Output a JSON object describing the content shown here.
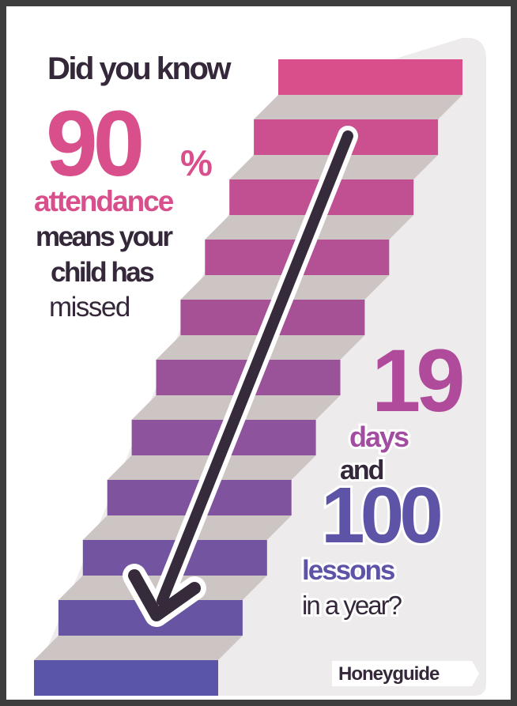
{
  "poster": {
    "intro": "Did you know",
    "percent_number": "90",
    "percent_sign": "%",
    "attendance": "attendance",
    "line1": "means your",
    "line2": "child has",
    "line3": "missed",
    "days_number": "19",
    "days": "days",
    "and": "and",
    "lessons_number": "100",
    "lessons": "lessons",
    "in_a_year": "in a year?",
    "brand": "Honeyguide"
  }
}
